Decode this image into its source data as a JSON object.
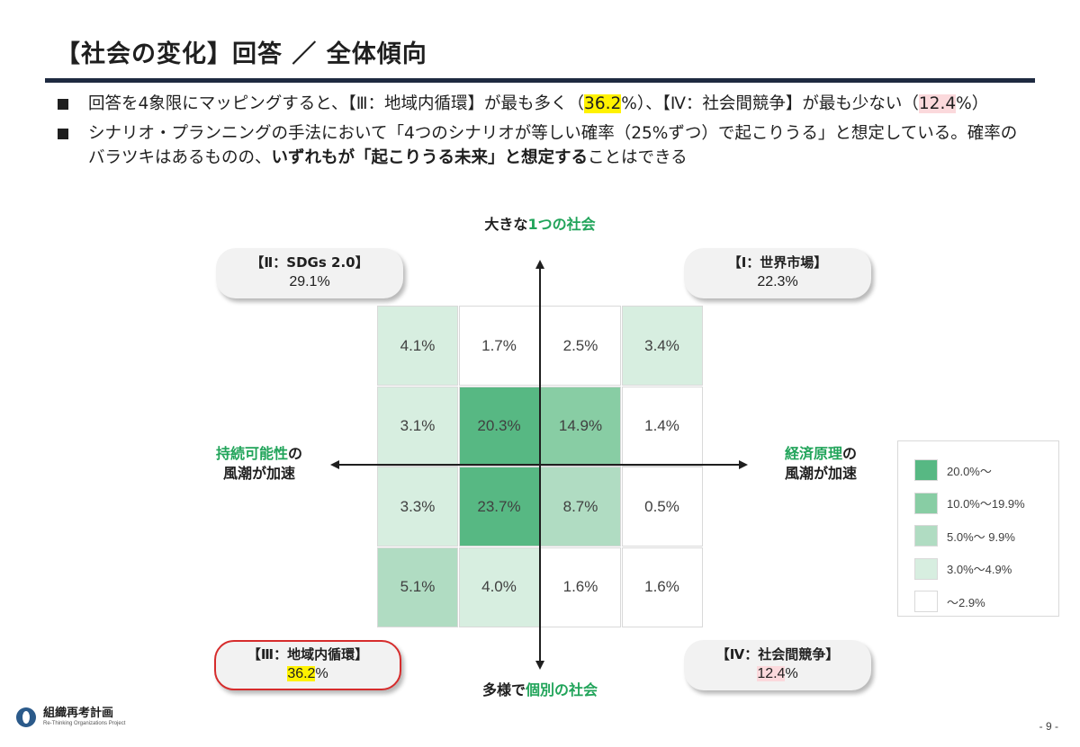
{
  "header": {
    "title": "【社会の変化】回答 ／ 全体傾向"
  },
  "bullets": {
    "b1_part1": "回答を4象限にマッピングすると、【Ⅲ：地域内循環】が最も多く（",
    "b1_hl1": "36.2",
    "b1_part2": "%）、【Ⅳ：社会間競争】が最も少ない（",
    "b1_hl2": "12.4",
    "b1_part3": "%）",
    "b2_part1": "シナリオ・プランニングの手法において「4つのシナリオが等しい確率（25%ずつ）で起こりうる」と想定している。確率のバラツキはあるものの、",
    "b2_bold": "いずれもが「起こりうる未来」と想定する",
    "b2_part2": "ことはできる"
  },
  "axes": {
    "top_a": "大きな",
    "top_b": "1つの社会",
    "bottom_a": "多様で",
    "bottom_b": "個別の社会",
    "left_a": "持続可能性",
    "left_b": "の",
    "left_c": "風潮が加速",
    "right_a": "経済原理",
    "right_b": "の",
    "right_c": "風潮が加速"
  },
  "quadrants": {
    "q2": {
      "title": "【Ⅱ：SDGs 2.0】",
      "value": "29.1%"
    },
    "q1": {
      "title": "【Ⅰ：世界市場】",
      "value": "22.3%"
    },
    "q3": {
      "title": "【Ⅲ：地域内循環】",
      "value_num": "36.2",
      "value_unit": "%"
    },
    "q4": {
      "title": "【Ⅳ：社会間競争】",
      "value_num": "12.4",
      "value_unit": "%"
    }
  },
  "chart_data": {
    "type": "heatmap",
    "rows": 4,
    "cols": 4,
    "values": [
      [
        4.1,
        1.7,
        2.5,
        3.4
      ],
      [
        3.1,
        20.3,
        14.9,
        1.4
      ],
      [
        3.3,
        23.7,
        8.7,
        0.5
      ],
      [
        5.1,
        4.0,
        1.6,
        1.6
      ]
    ],
    "labels": [
      [
        "4.1%",
        "1.7%",
        "2.5%",
        "3.4%"
      ],
      [
        "3.1%",
        "20.3%",
        "14.9%",
        "1.4%"
      ],
      [
        "3.3%",
        "23.7%",
        "8.7%",
        "0.5%"
      ],
      [
        "5.1%",
        "4.0%",
        "1.6%",
        "1.6%"
      ]
    ],
    "color_scale": [
      {
        "min": 20.0,
        "label": "20.0%～",
        "color": "#57b883"
      },
      {
        "min": 10.0,
        "label": "10.0%～19.9%",
        "color": "#88cda4"
      },
      {
        "min": 5.0,
        "label": "5.0%～ 9.9%",
        "color": "#b0dcc2"
      },
      {
        "min": 3.0,
        "label": "3.0%～4.9%",
        "color": "#d7eee0"
      },
      {
        "min": 0.0,
        "label": "～2.9%",
        "color": "#ffffff"
      }
    ]
  },
  "footer": {
    "logo_main": "組織再考計画",
    "logo_sub": "Re-Thinking Organizations Project",
    "page": "- 9 -"
  },
  "colors": {
    "accent_green": "#21a45a",
    "rule": "#1e2a40",
    "highlight_yellow": "#fff200",
    "highlight_pink": "#fbd9dc",
    "selected_border": "#d62c2c"
  }
}
